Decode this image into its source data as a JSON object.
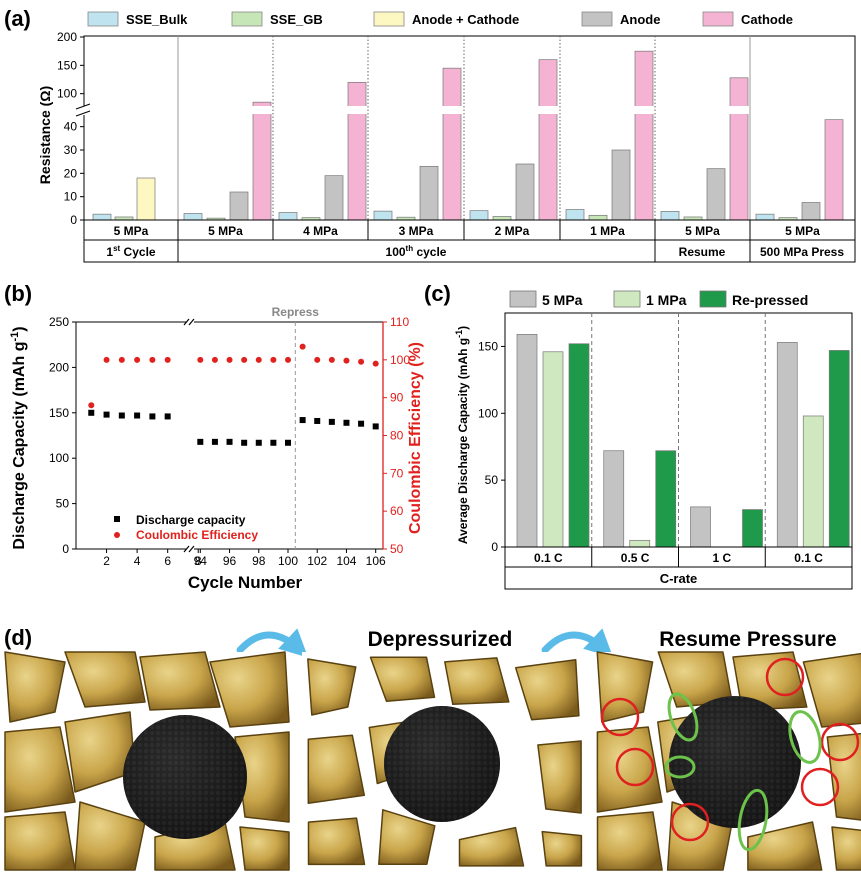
{
  "figure": {
    "panel_labels": [
      "(a)",
      "(b)",
      "(c)",
      "(d)"
    ]
  },
  "colors": {
    "sse_bulk": "#bfe3ef",
    "sse_gb": "#c7e6b8",
    "anode_cathode": "#fdf7c2",
    "anode": "#c3c3c3",
    "cathode": "#f5b3d3",
    "capacity": "#000000",
    "ce": "#e0211d",
    "five_mpa": "#c3c3c3",
    "one_mpa": "#cfe8bf",
    "repressed": "#1f9a4a",
    "arrow": "#5bbbe8",
    "cathode_particle": "#1a1a1a",
    "electrolyte": "#c9a54a",
    "red_circle": "#e02020",
    "green_ellipse": "#6cc24a",
    "repress_text": "#888888"
  },
  "chart_data": [
    {
      "id": "a",
      "type": "bar",
      "legend": [
        "SSE_Bulk",
        "SSE_GB",
        "Anode + Cathode",
        "Anode",
        "Cathode"
      ],
      "ylabel": "Resistance (Ω)",
      "y_ticks_lower": [
        0,
        10,
        20,
        30,
        40
      ],
      "y_ticks_upper": [
        100,
        150,
        200
      ],
      "y_ranges": {
        "lower": [
          0,
          45
        ],
        "upper": [
          80,
          200
        ]
      },
      "groups": [
        {
          "pressure": "5 MPa",
          "values": [
            null,
            null,
            18,
            null,
            null
          ],
          "bulk_gb": [
            2.5,
            1.3
          ]
        },
        {
          "pressure": "5 MPa",
          "values": [
            2.8,
            0.8,
            null,
            12,
            85
          ]
        },
        {
          "pressure": "4 MPa",
          "values": [
            3.2,
            1.0,
            null,
            19,
            120
          ]
        },
        {
          "pressure": "3 MPa",
          "values": [
            3.8,
            1.2,
            null,
            23,
            145
          ]
        },
        {
          "pressure": "2 MPa",
          "values": [
            4.0,
            1.5,
            null,
            24,
            160
          ]
        },
        {
          "pressure": "1 MPa",
          "values": [
            4.5,
            2.0,
            null,
            30,
            175
          ]
        },
        {
          "pressure": "5 MPa",
          "values": [
            3.7,
            1.3,
            null,
            22,
            128
          ]
        },
        {
          "pressure": "5 MPa",
          "values": [
            2.5,
            1.0,
            null,
            7.5,
            43
          ]
        }
      ],
      "row1_labels": [
        "5 MPa",
        "5 MPa",
        "4 MPa",
        "3 MPa",
        "2 MPa",
        "1 MPa",
        "5 MPa",
        "5 MPa"
      ],
      "row2_labels": {
        "first": "1",
        "first_sup": "st",
        "first_tail": " Cycle",
        "mid": "100",
        "mid_sup": "th",
        "mid_tail": " cycle",
        "resume": "Resume",
        "press": "500 MPa Press"
      }
    },
    {
      "id": "b",
      "type": "scatter",
      "xlabel": "Cycle Number",
      "ylabel_left": "Discharge Capacity (mAh g",
      "ylabel_left_sup": "-1",
      "ylabel_left_tail": ")",
      "ylabel_right": "Coulombic Efficiency (%)",
      "ylim_left": [
        0,
        250
      ],
      "ylim_right": [
        50,
        110
      ],
      "y_ticks_left": [
        0,
        50,
        100,
        150,
        200,
        250
      ],
      "y_ticks_right": [
        50,
        60,
        70,
        80,
        90,
        100,
        110
      ],
      "x_ticks_left": [
        "2",
        "4",
        "6",
        "8"
      ],
      "x_ticks_right": [
        "94",
        "96",
        "98",
        "100",
        "102",
        "104",
        "106"
      ],
      "annotation": "Repress",
      "legend": [
        "Discharge capacity",
        "Coulombic Efficiency"
      ],
      "capacity_seg1": {
        "x": [
          1,
          2,
          3,
          4,
          5,
          6
        ],
        "y": [
          150,
          148,
          147,
          147,
          146,
          146
        ]
      },
      "ce_seg1": {
        "x": [
          1,
          2,
          3,
          4,
          5,
          6
        ],
        "y": [
          88,
          100,
          100,
          100,
          100,
          100
        ]
      },
      "capacity_seg2": {
        "x": [
          94,
          95,
          96,
          97,
          98,
          99,
          100,
          101,
          102,
          103,
          104,
          105,
          106
        ],
        "y": [
          118,
          118,
          118,
          117,
          117,
          117,
          117,
          142,
          141,
          140,
          139,
          138,
          135
        ]
      },
      "ce_seg2": {
        "x": [
          94,
          95,
          96,
          97,
          98,
          99,
          100,
          101,
          102,
          103,
          104,
          105,
          106
        ],
        "y": [
          100,
          100,
          100,
          100,
          100,
          100,
          100,
          103.5,
          100,
          100,
          99.8,
          99.5,
          99
        ]
      }
    },
    {
      "id": "c",
      "type": "bar",
      "legend": [
        "5 MPa",
        "1 MPa",
        "Re-pressed"
      ],
      "ylabel": "Average Discharge Capacity (mAh g",
      "ylabel_sup": "-1",
      "ylabel_tail": ")",
      "xlabel": "C-rate",
      "categories": [
        "0.1 C",
        "0.5 C",
        "1 C",
        "0.1 C"
      ],
      "ylim": [
        0,
        175
      ],
      "y_ticks": [
        0,
        50,
        100,
        150
      ],
      "series": [
        {
          "name": "5 MPa",
          "values": [
            159,
            72,
            30,
            153
          ]
        },
        {
          "name": "1 MPa",
          "values": [
            146,
            5,
            0,
            98
          ]
        },
        {
          "name": "Re-pressed",
          "values": [
            152,
            72,
            28,
            147
          ]
        }
      ]
    }
  ],
  "panel_d": {
    "titles": [
      "Depressurized",
      "Resume Pressure"
    ]
  }
}
